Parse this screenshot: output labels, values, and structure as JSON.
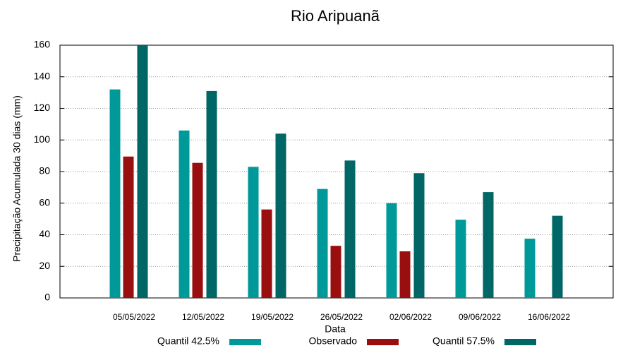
{
  "chart_data": {
    "type": "bar",
    "title": "Rio Aripuanã",
    "x_label": "Data",
    "y_label": "Precipitação Acumulada 30 dias (mm)",
    "categories": [
      "05/05/2022",
      "12/05/2022",
      "19/05/2022",
      "26/05/2022",
      "02/06/2022",
      "09/06/2022",
      "16/06/2022"
    ],
    "series": [
      {
        "name": "Quantil 42.5%",
        "color": "#009999",
        "values": [
          132,
          106,
          83,
          69,
          60,
          49.5,
          37.5
        ]
      },
      {
        "name": "Observado",
        "color": "#990f0f",
        "values": [
          89.5,
          85.5,
          56,
          33,
          29.5,
          null,
          null
        ]
      },
      {
        "name": "Quantil 57.5%",
        "color": "#006666",
        "values": [
          160,
          131,
          104,
          87,
          79,
          67,
          52
        ]
      }
    ],
    "ylim": [
      0,
      160
    ],
    "yticks": [
      0,
      20,
      40,
      60,
      80,
      100,
      120,
      140,
      160
    ],
    "grid": true,
    "legend": "bottom"
  }
}
